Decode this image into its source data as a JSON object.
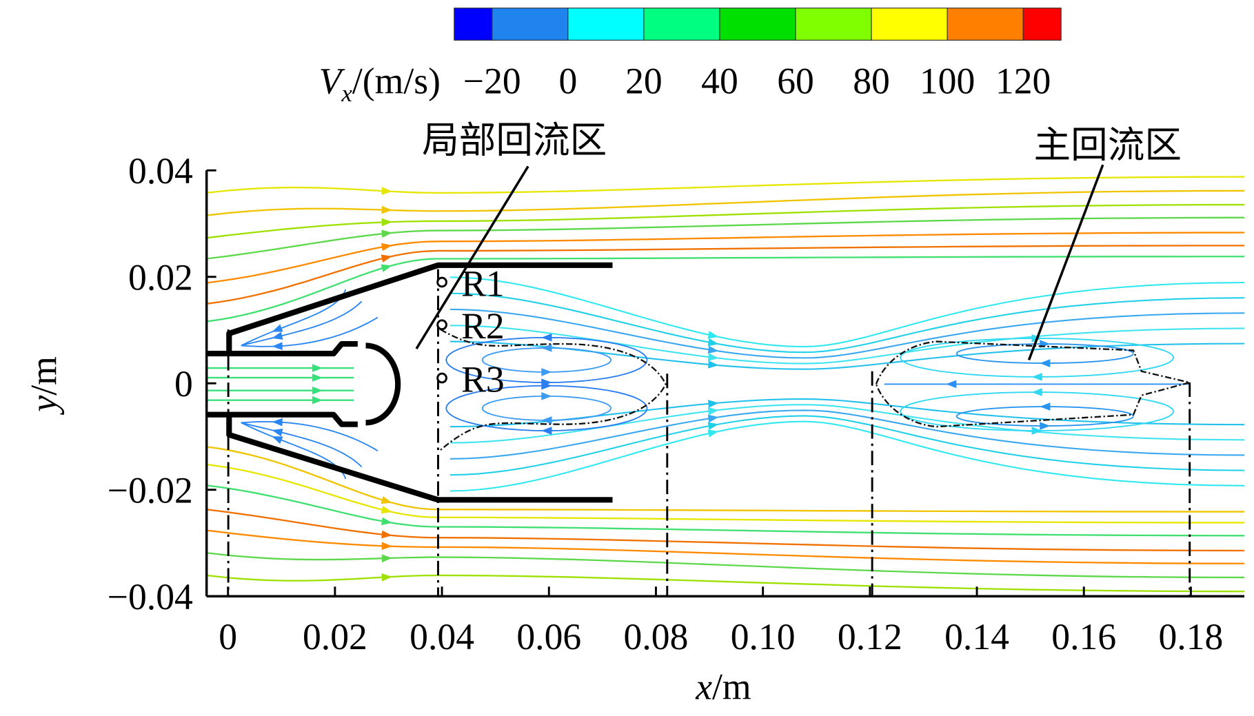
{
  "chart_data": {
    "type": "streamline",
    "x_label": [
      "x",
      "/m"
    ],
    "y_label": [
      "y",
      "/m"
    ],
    "xlim": [
      -0.004,
      0.19
    ],
    "ylim": [
      -0.04,
      0.04
    ],
    "xticks": [
      0,
      0.02,
      0.04,
      0.06,
      0.08,
      {
        "value": 0.1,
        "label": "0.10"
      },
      0.12,
      0.14,
      0.16,
      0.18
    ],
    "yticks": [
      {
        "value": -0.04,
        "label": "−0.04"
      },
      {
        "value": -0.02,
        "label": "−0.02"
      },
      0,
      0.02,
      0.04
    ],
    "colorbar": {
      "label": [
        "V",
        "x",
        "/(m/s)"
      ],
      "levels": [
        -30,
        -20,
        0,
        20,
        40,
        60,
        80,
        100,
        120,
        130
      ],
      "colors": [
        "#0000ff",
        "#1f84ee",
        "#00ffff",
        "#00ff80",
        "#00e000",
        "#80ff00",
        "#ffff00",
        "#ff8000",
        "#ff0000"
      ],
      "ticks": [
        {
          "value": -20,
          "label": "−20"
        },
        0,
        20,
        40,
        60,
        80,
        100,
        120
      ]
    },
    "probes": [
      {
        "label": "R1",
        "x": 0.04,
        "y": 0.019
      },
      {
        "label": "R2",
        "x": 0.04,
        "y": 0.011
      },
      {
        "label": "R3",
        "x": 0.04,
        "y": 0.001
      }
    ],
    "annotations": [
      {
        "text": "局部回流区"
      },
      {
        "text": "主回流区"
      }
    ]
  }
}
